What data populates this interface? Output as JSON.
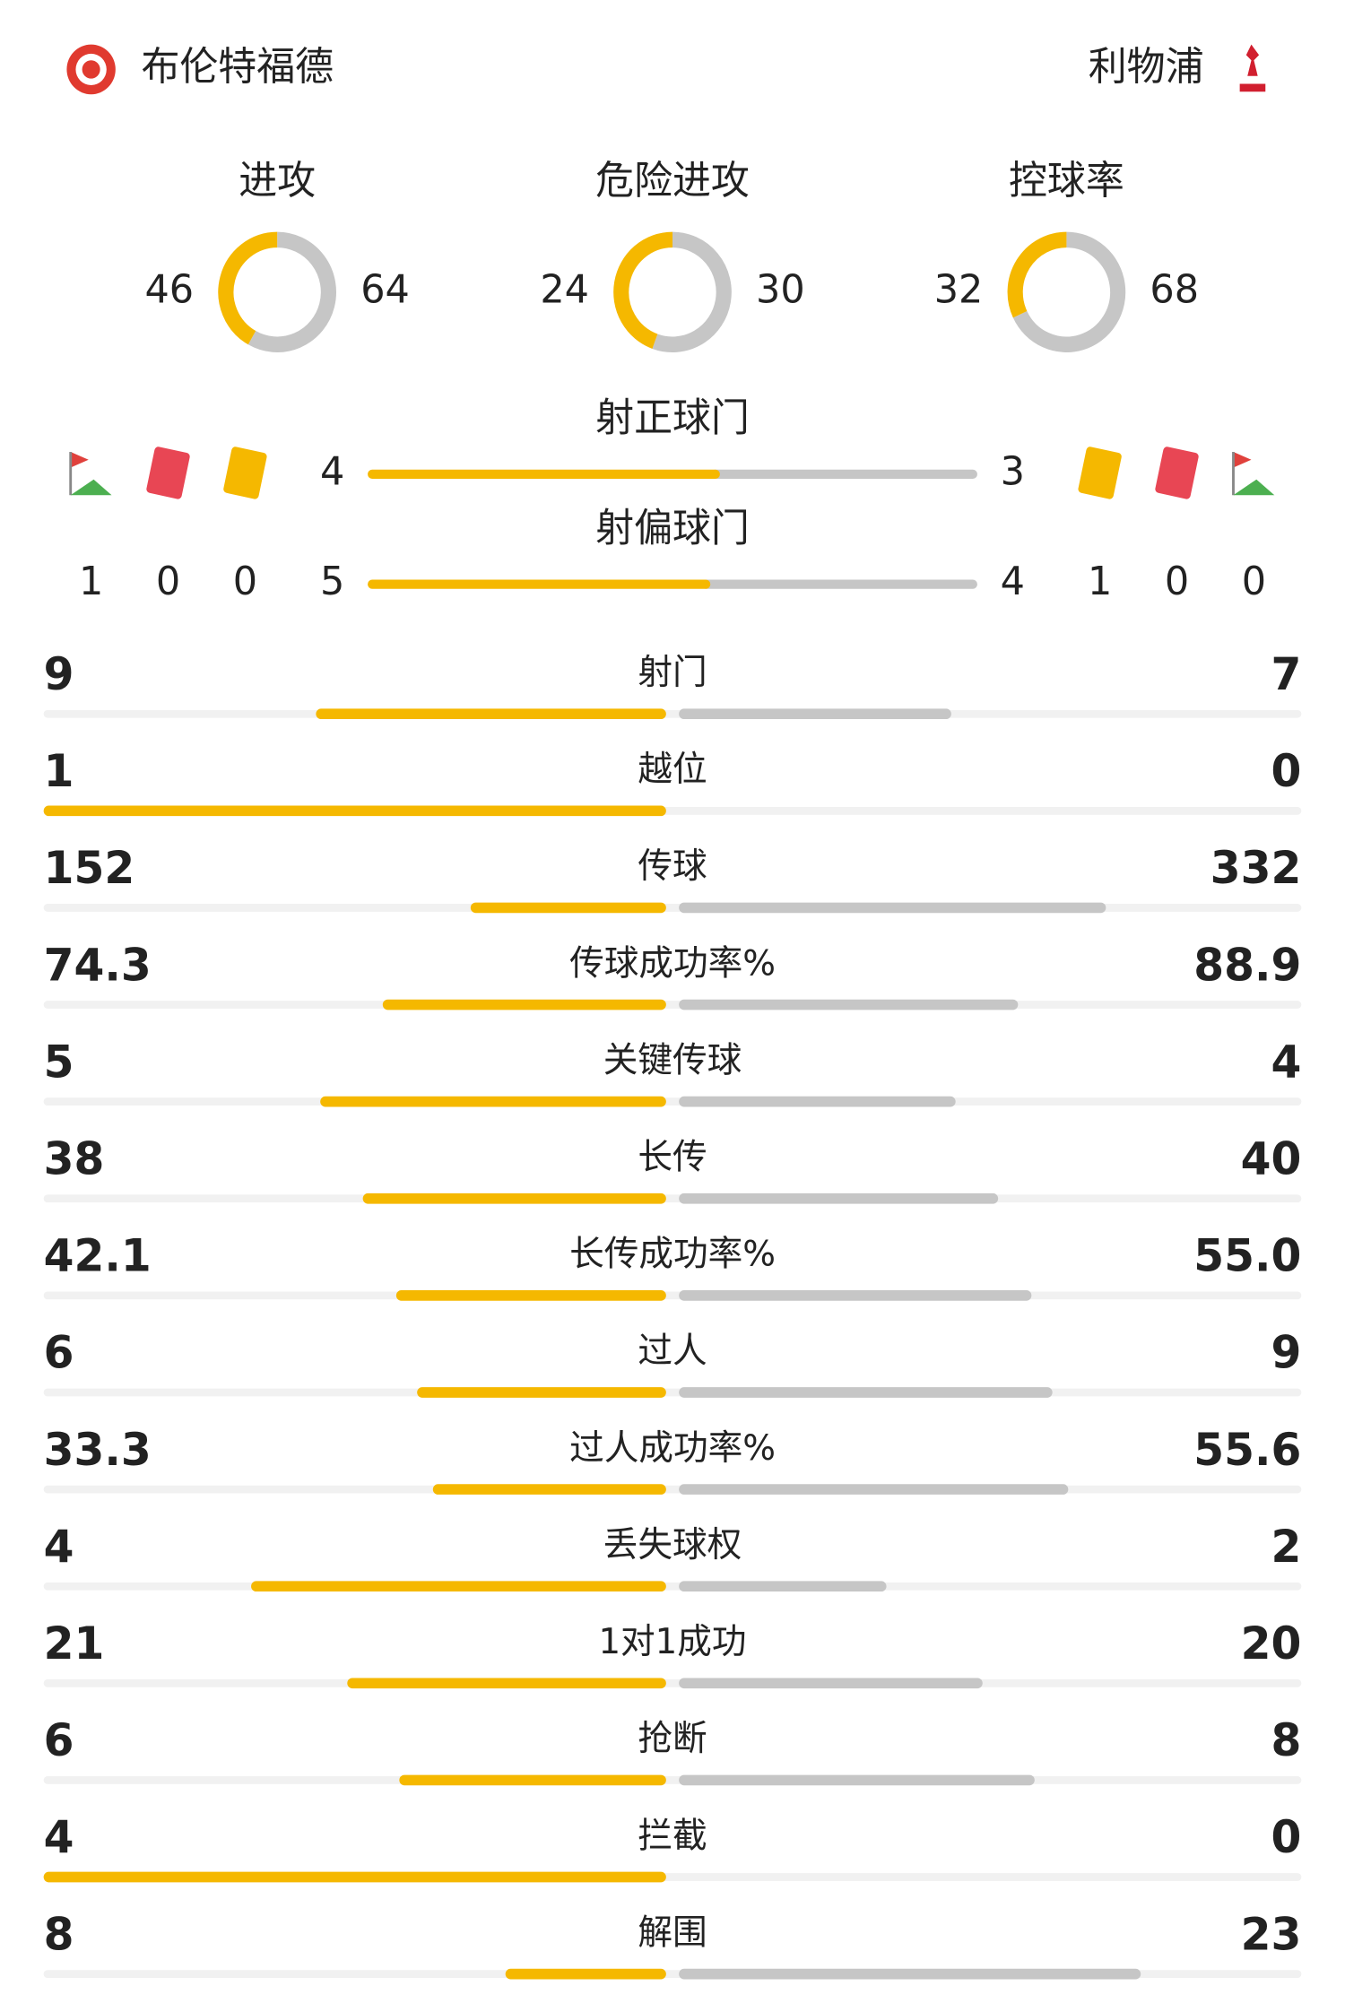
{
  "header": {
    "home_team": "布伦特福德",
    "away_team": "利物浦"
  },
  "donuts": [
    {
      "label": "进攻",
      "home": 46,
      "away": 64
    },
    {
      "label": "危险进攻",
      "home": 24,
      "away": 30
    },
    {
      "label": "控球率",
      "home": 32,
      "away": 68
    }
  ],
  "shots": [
    {
      "label": "射正球门",
      "home": 4,
      "away": 3
    },
    {
      "label": "射偏球门",
      "home": 5,
      "away": 4
    }
  ],
  "discipline": {
    "home": {
      "corners": 1,
      "red_cards": 0,
      "yellow_cards": 0
    },
    "away": {
      "yellow_cards": 1,
      "red_cards": 0,
      "corners": 0
    }
  },
  "stats": [
    {
      "label": "射门",
      "home": 9,
      "away": 7
    },
    {
      "label": "越位",
      "home": 1,
      "away": 0
    },
    {
      "label": "传球",
      "home": 152,
      "away": 332
    },
    {
      "label": "传球成功率%",
      "home": 74.3,
      "away": 88.9
    },
    {
      "label": "关键传球",
      "home": 5,
      "away": 4
    },
    {
      "label": "长传",
      "home": 38,
      "away": 40
    },
    {
      "label": "长传成功率%",
      "home": 42.1,
      "away": {
        "value": 55,
        "label": "55.0"
      }
    },
    {
      "label": "过人",
      "home": 6,
      "away": 9
    },
    {
      "label": "过人成功率%",
      "home": 33.3,
      "away": 55.6
    },
    {
      "label": "丢失球权",
      "home": 4,
      "away": 2
    },
    {
      "label": "1对1成功",
      "home": 21,
      "away": 20
    },
    {
      "label": "抢断",
      "home": 6,
      "away": 8
    },
    {
      "label": "拦截",
      "home": 4,
      "away": 0
    },
    {
      "label": "解围",
      "home": 8,
      "away": 23
    }
  ]
}
